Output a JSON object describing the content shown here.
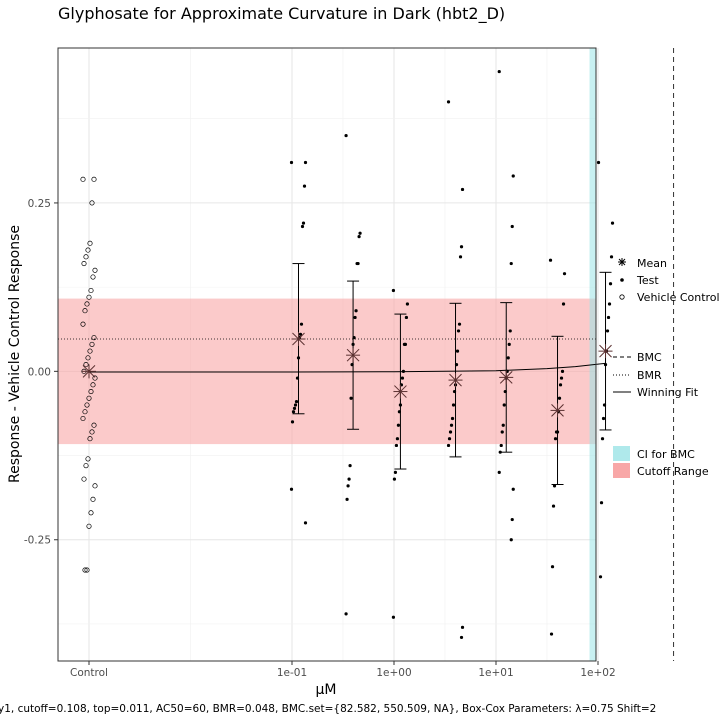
{
  "chart_data": {
    "type": "scatter",
    "title": "Glyphosate for Approximate Curvature in Dark (hbt2_D)",
    "xlabel": "µM",
    "ylabel": "Response - Vehicle Control Response",
    "x_scale": "log10",
    "x_tick_labels": [
      "Control",
      "1e-01",
      "1e+00",
      "1e+01",
      "1e+02"
    ],
    "x_tick_values": [
      null,
      0.1,
      1,
      10,
      100
    ],
    "y_ticks": [
      0.25,
      0.0,
      -0.25
    ],
    "y_tick_labels": [
      "0.25",
      "0.00",
      "-0.25"
    ],
    "ylim": [
      -0.43,
      0.48
    ],
    "grid": true,
    "colors": {
      "cutoff_band": "#f8a7a7",
      "ci_band": "#9be3e6",
      "points": "#000000",
      "mean_marker": "#5a3030"
    },
    "cutoff_range": [
      -0.108,
      0.108
    ],
    "bmr_line": 0.048,
    "bmc_line": 550.509,
    "ci_for_bmc": [
      82.582,
      9999
    ],
    "winning_fit": [
      [
        0.1,
        -0.001
      ],
      [
        0.316,
        -0.0008
      ],
      [
        1.0,
        -0.0005
      ],
      [
        3.16,
        0.0
      ],
      [
        10.0,
        0.001
      ],
      [
        31.6,
        0.004
      ],
      [
        60.0,
        0.007
      ],
      [
        120.0,
        0.012
      ]
    ],
    "control_points": [
      0.285,
      0.285,
      0.25,
      0.19,
      0.18,
      0.17,
      0.16,
      0.15,
      0.14,
      0.12,
      0.11,
      0.1,
      0.09,
      0.07,
      0.05,
      0.04,
      0.03,
      0.02,
      0.01,
      0.0,
      -0.01,
      -0.02,
      -0.03,
      -0.04,
      -0.05,
      -0.06,
      -0.07,
      -0.08,
      -0.09,
      -0.1,
      -0.13,
      -0.14,
      -0.16,
      -0.17,
      -0.19,
      -0.21,
      -0.23,
      -0.295,
      -0.295
    ],
    "test_groups": [
      {
        "x": 0.1158,
        "values": [
          0.31,
          0.31,
          0.275,
          0.22,
          0.215,
          0.07,
          0.055,
          0.05,
          0.02,
          -0.01,
          -0.045,
          -0.05,
          -0.055,
          -0.06,
          -0.075,
          -0.175,
          -0.225
        ]
      },
      {
        "x": 0.397,
        "values": [
          0.35,
          0.205,
          0.2,
          0.16,
          0.16,
          0.09,
          0.08,
          0.05,
          0.04,
          0.01,
          -0.04,
          -0.14,
          -0.16,
          -0.17,
          -0.19,
          -0.36
        ]
      },
      {
        "x": 1.156,
        "values": [
          0.12,
          0.1,
          0.08,
          0.04,
          0.04,
          0.0,
          -0.01,
          -0.02,
          -0.05,
          -0.06,
          -0.08,
          -0.1,
          -0.11,
          -0.15,
          -0.16,
          -0.365
        ]
      },
      {
        "x": 4.01,
        "values": [
          0.4,
          0.27,
          0.185,
          0.17,
          0.07,
          0.06,
          0.03,
          0.01,
          -0.02,
          -0.03,
          -0.05,
          -0.07,
          -0.08,
          -0.09,
          -0.1,
          -0.11,
          -0.38,
          -0.395
        ]
      },
      {
        "x": 12.6,
        "values": [
          0.445,
          0.29,
          0.215,
          0.16,
          0.06,
          0.04,
          0.02,
          0.0,
          -0.01,
          -0.03,
          -0.05,
          -0.08,
          -0.09,
          -0.11,
          -0.12,
          -0.15,
          -0.175,
          -0.22,
          -0.25
        ]
      },
      {
        "x": 40.1,
        "values": [
          0.165,
          0.145,
          0.1,
          0.0,
          -0.01,
          -0.02,
          -0.04,
          -0.06,
          -0.09,
          -0.09,
          -0.1,
          -0.17,
          -0.2,
          -0.29,
          -0.39
        ]
      },
      {
        "x": 118.5,
        "values": [
          0.31,
          0.22,
          0.17,
          0.13,
          0.1,
          0.08,
          0.06,
          0.03,
          0.01,
          -0.05,
          -0.07,
          -0.1,
          -0.195,
          -0.305
        ]
      }
    ],
    "means": [
      {
        "x": null,
        "mean": 0.0,
        "lower": null,
        "upper": null
      },
      {
        "x": 0.1158,
        "mean": 0.048,
        "lower": -0.063,
        "upper": 0.16
      },
      {
        "x": 0.397,
        "mean": 0.024,
        "lower": -0.086,
        "upper": 0.134
      },
      {
        "x": 1.156,
        "mean": -0.03,
        "lower": -0.145,
        "upper": 0.085
      },
      {
        "x": 4.01,
        "mean": -0.013,
        "lower": -0.127,
        "upper": 0.101
      },
      {
        "x": 12.6,
        "mean": -0.009,
        "lower": -0.12,
        "upper": 0.102
      },
      {
        "x": 40.1,
        "mean": -0.058,
        "lower": -0.168,
        "upper": 0.052
      },
      {
        "x": 118.5,
        "mean": 0.03,
        "lower": -0.087,
        "upper": 0.147
      }
    ]
  },
  "legend_points": {
    "mean": "Mean",
    "test": "Test",
    "control": "Vehicle Control"
  },
  "legend_lines": {
    "bmc": "BMC",
    "bmr": "BMR",
    "fit": "Winning Fit"
  },
  "legend_ranges": {
    "ci": "CI for BMC",
    "cutoff": "Cutoff Range"
  },
  "caption": "y1, cutoff=0.108, top=0.011, AC50=60, BMR=0.048, BMC.set={82.582, 550.509, NA}, Box-Cox Parameters: λ=0.75 Shift=2"
}
